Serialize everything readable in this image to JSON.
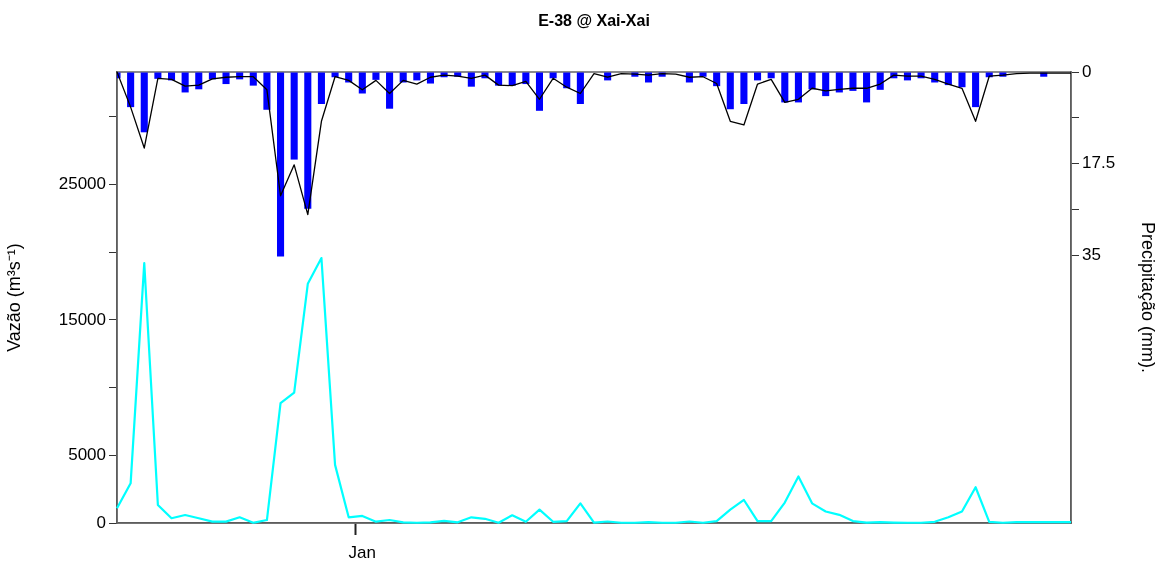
{
  "chart_data": {
    "type": "line",
    "title": "E-38 @ Xai-Xai",
    "ylabel": "Vazão (m³s⁻¹)",
    "y2label": "Precipitação (mm).",
    "categories": [
      null,
      null,
      null,
      null,
      null,
      null,
      null,
      null,
      null,
      null,
      null,
      null,
      null,
      null,
      null,
      null,
      null,
      null,
      "Jan",
      null,
      null,
      null,
      null,
      null,
      null,
      null,
      null,
      null,
      null,
      null,
      null,
      null,
      null,
      null,
      null,
      null,
      null,
      null,
      null,
      null,
      null,
      null,
      null,
      null,
      null,
      null,
      null,
      null,
      null,
      null,
      null,
      null,
      null,
      null,
      null,
      null,
      null,
      null,
      null,
      null,
      null,
      null,
      null,
      null,
      null,
      null,
      null,
      null,
      null,
      null,
      null
    ],
    "ylim": [
      0,
      33300
    ],
    "yticks": [
      0,
      5000,
      {
        "value": 10000,
        "label": null
      },
      15000,
      {
        "value": 20000,
        "label": null
      },
      25000,
      {
        "value": 30000,
        "label": null
      }
    ],
    "y2lim": [
      86,
      0
    ],
    "y2ticks": [
      0,
      {
        "value": 8.75,
        "label": null
      },
      17.5,
      {
        "value": 26.25,
        "label": null
      },
      35
    ],
    "marker": "none",
    "series": [
      {
        "type": "bar",
        "axis": "y2",
        "color": "#0000ff",
        "values": [
          1.2,
          6.7,
          11.5,
          1.3,
          1.6,
          3.9,
          3.3,
          1.4,
          2.3,
          1.4,
          2.6,
          7.2,
          35.2,
          16.7,
          26.1,
          6.1,
          1.0,
          2.0,
          4.1,
          1.5,
          7.0,
          2.0,
          1.6,
          2.2,
          1.0,
          0.9,
          2.8,
          1.2,
          2.6,
          2.6,
          2.3,
          7.4,
          1.2,
          3.1,
          6.1,
          0,
          1.6,
          0,
          0.9,
          2.0,
          0.9,
          0,
          2.0,
          0.9,
          2.7,
          7.1,
          6.1,
          1.6,
          1.2,
          5.8,
          5.8,
          3.3,
          4.6,
          3.9,
          3.6,
          5.8,
          3.4,
          1.2,
          1.6,
          1.2,
          2.0,
          2.5,
          2.9,
          6.7,
          1.0,
          0.9,
          0,
          0,
          0.9,
          0,
          0
        ]
      },
      {
        "axis": "y2",
        "color": "#000000",
        "values": [
          0,
          6.7,
          14.5,
          1.2,
          1.4,
          2.7,
          2.5,
          1.3,
          1.0,
          0.9,
          0.9,
          3.4,
          23.6,
          17.7,
          27.2,
          9.4,
          0.9,
          1.6,
          3.4,
          1.6,
          4.1,
          1.6,
          2.3,
          1.0,
          0.6,
          0.8,
          1.2,
          0.6,
          2.5,
          2.6,
          1.8,
          5.2,
          1.2,
          2.9,
          4.1,
          0.3,
          1.0,
          0.3,
          0.4,
          0.6,
          0.3,
          0.4,
          1.0,
          0.9,
          2.2,
          9.4,
          10.1,
          2.3,
          1.4,
          5.8,
          5.2,
          3.1,
          3.6,
          3.3,
          3.1,
          3.1,
          2.3,
          0.6,
          0.8,
          0.8,
          1.4,
          2.3,
          3.1,
          9.4,
          0.8,
          0.6,
          0.3,
          0.2,
          0.2,
          0.2,
          0.2
        ]
      },
      {
        "axis": "y",
        "color": "#00ffff",
        "values": [
          1090,
          2930,
          19190,
          1330,
          350,
          590,
          350,
          100,
          100,
          420,
          20,
          220,
          8850,
          9630,
          17660,
          19560,
          4290,
          420,
          520,
          100,
          220,
          50,
          20,
          50,
          150,
          50,
          420,
          310,
          20,
          570,
          90,
          990,
          90,
          140,
          1450,
          30,
          110,
          20,
          20,
          60,
          20,
          20,
          110,
          20,
          140,
          990,
          1700,
          140,
          140,
          1510,
          3440,
          1450,
          850,
          600,
          140,
          30,
          60,
          30,
          20,
          20,
          90,
          430,
          850,
          2640,
          90,
          20,
          60,
          60,
          60,
          60,
          60
        ]
      }
    ]
  }
}
